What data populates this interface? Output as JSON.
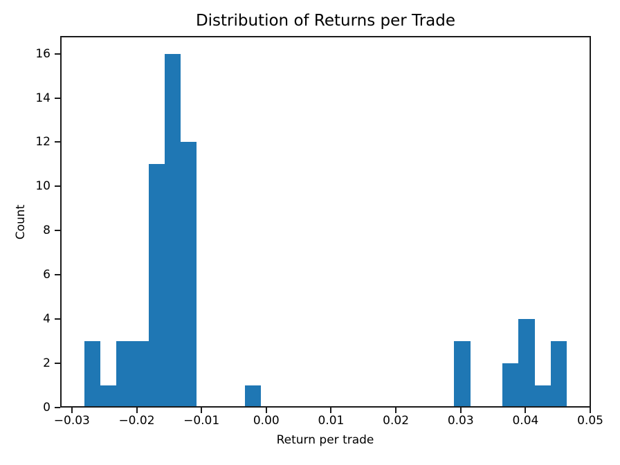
{
  "chart_data": {
    "type": "bar",
    "subtype": "histogram",
    "title": "Distribution of Returns per Trade",
    "xlabel": "Return per trade",
    "ylabel": "Count",
    "bar_color": "#1f77b4",
    "axis_color": "#1a1a1a",
    "grid": false,
    "legend_position": "none",
    "bin_start": -0.02811,
    "bin_width": 0.002483,
    "counts": [
      3,
      1,
      3,
      3,
      11,
      16,
      12,
      0,
      0,
      0,
      1,
      0,
      0,
      0,
      0,
      0,
      0,
      0,
      0,
      0,
      0,
      0,
      0,
      3,
      0,
      0,
      2,
      4,
      1,
      3
    ],
    "xlim": [
      -0.0318,
      0.0501
    ],
    "ylim": [
      0,
      16.8
    ],
    "x_ticks": [
      -0.03,
      -0.02,
      -0.01,
      0.0,
      0.01,
      0.02,
      0.03,
      0.04,
      0.05
    ],
    "x_tick_labels": [
      "−0.03",
      "−0.02",
      "−0.01",
      "0.00",
      "0.01",
      "0.02",
      "0.03",
      "0.04",
      "0.05"
    ],
    "y_ticks": [
      0,
      2,
      4,
      6,
      8,
      10,
      12,
      14,
      16
    ],
    "y_tick_labels": [
      "0",
      "2",
      "4",
      "6",
      "8",
      "10",
      "12",
      "14",
      "16"
    ]
  }
}
